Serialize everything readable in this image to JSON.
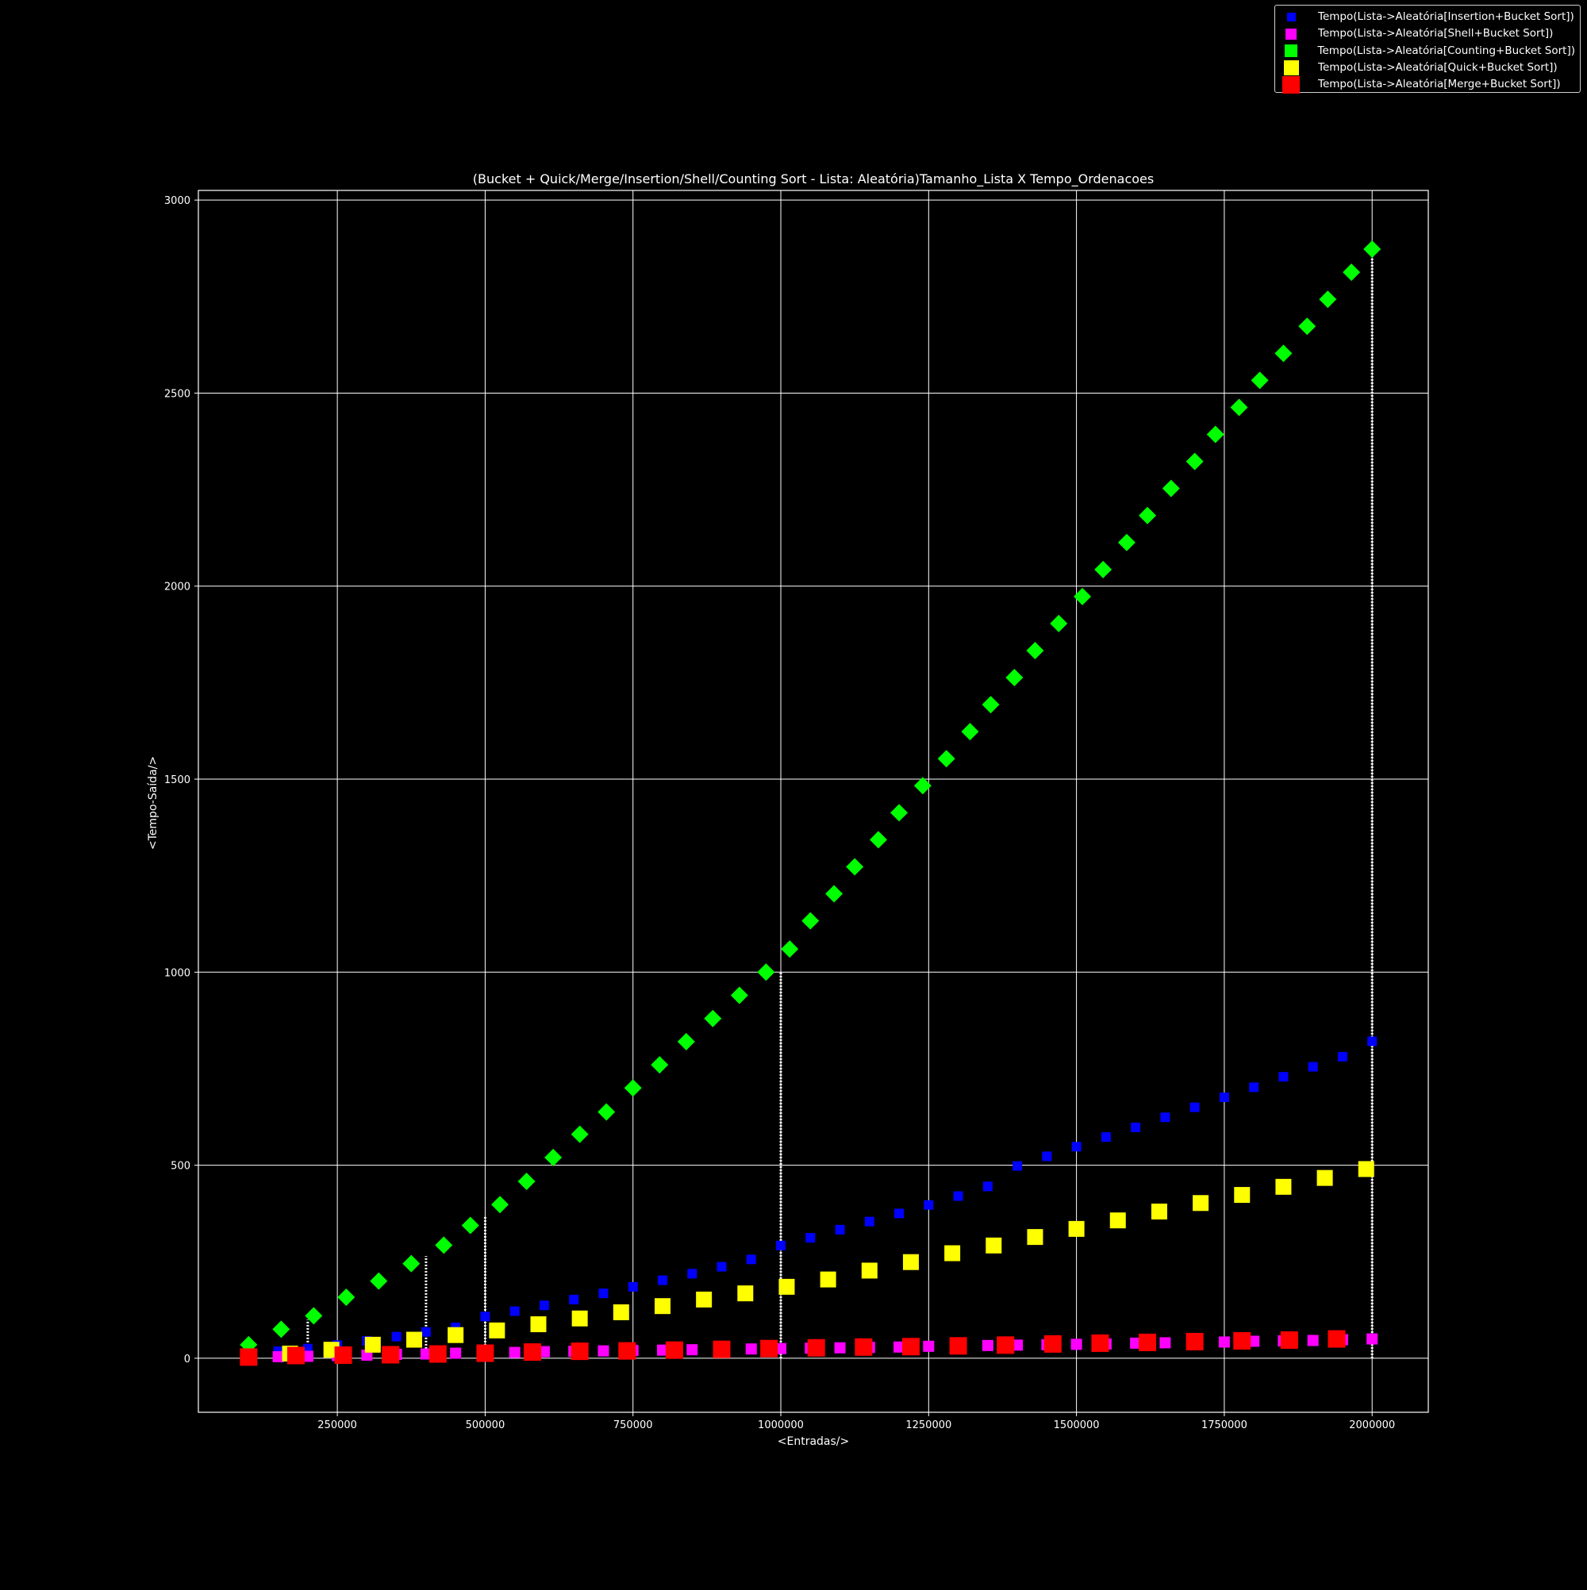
{
  "chart_data": {
    "type": "scatter",
    "title": "(Bucket + Quick/Merge/Insertion/Shell/Counting Sort - Lista: Aleatória)Tamanho_Lista X Tempo_Ordenacoes",
    "xlabel": "<Entradas/>",
    "ylabel": "<Tempo-Saída/>",
    "xlim": [
      15000,
      2095000
    ],
    "ylim": [
      -140,
      3025
    ],
    "xticks": [
      250000,
      500000,
      750000,
      1000000,
      1250000,
      1500000,
      1750000,
      2000000
    ],
    "yticks": [
      0,
      500,
      1000,
      1500,
      2000,
      2500,
      3000
    ],
    "xtick_labels": [
      "250000",
      "500000",
      "750000",
      "1000000",
      "1250000",
      "1500000",
      "1750000",
      "2000000"
    ],
    "ytick_labels": [
      "0",
      "500",
      "1000",
      "1500",
      "2000",
      "2500",
      "3000"
    ],
    "grid": true,
    "legend_position": "top-right",
    "background": "#000000",
    "series": [
      {
        "name": "Tempo(Lista->Aleatória[Insertion+Bucket Sort])",
        "color": "#0000ff",
        "marker": "square",
        "x": [
          100000,
          150000,
          200000,
          250000,
          300000,
          350000,
          400000,
          450000,
          500000,
          550000,
          600000,
          650000,
          700000,
          750000,
          800000,
          850000,
          900000,
          950000,
          1000000,
          1050000,
          1100000,
          1150000,
          1200000,
          1250000,
          1300000,
          1350000,
          1400000,
          1450000,
          1500000,
          1550000,
          1600000,
          1650000,
          1700000,
          1750000,
          1800000,
          1850000,
          1900000,
          1950000,
          2000000
        ],
        "y": [
          12,
          18,
          25,
          34,
          45,
          56,
          68,
          80,
          108,
          122,
          137,
          152,
          168,
          185,
          202,
          219,
          237,
          256,
          292,
          312,
          333,
          354,
          375,
          397,
          420,
          445,
          498,
          523,
          548,
          573,
          598,
          624,
          650,
          676,
          702,
          729,
          755,
          781,
          821
        ]
      },
      {
        "name": "Tempo(Lista->Aleatória[Shell+Bucket Sort])",
        "color": "#ff00ff",
        "marker": "square",
        "x": [
          100000,
          150000,
          200000,
          250000,
          300000,
          350000,
          400000,
          450000,
          500000,
          550000,
          600000,
          650000,
          700000,
          750000,
          800000,
          850000,
          900000,
          950000,
          1000000,
          1050000,
          1100000,
          1150000,
          1200000,
          1250000,
          1300000,
          1350000,
          1400000,
          1450000,
          1500000,
          1550000,
          1600000,
          1650000,
          1700000,
          1750000,
          1800000,
          1850000,
          1900000,
          1950000,
          2000000
        ],
        "y": [
          2,
          4,
          5,
          7,
          8,
          10,
          11,
          13,
          14,
          15,
          17,
          18,
          19,
          20,
          21,
          22,
          23,
          24,
          25,
          26,
          27,
          28,
          29,
          31,
          32,
          33,
          34,
          35,
          36,
          37,
          39,
          40,
          41,
          42,
          44,
          45,
          46,
          48,
          50
        ]
      },
      {
        "name": "Tempo(Lista->Aleatória[Counting+Bucket Sort])",
        "color": "#00ff00",
        "marker": "diamond",
        "x": [
          100000,
          155000,
          210000,
          265000,
          320000,
          375000,
          430000,
          475000,
          525000,
          570000,
          615000,
          660000,
          705000,
          750000,
          795000,
          840000,
          885000,
          930000,
          975000,
          1015000,
          1050000,
          1090000,
          1125000,
          1165000,
          1200000,
          1240000,
          1280000,
          1320000,
          1355000,
          1395000,
          1430000,
          1470000,
          1510000,
          1545000,
          1585000,
          1620000,
          1660000,
          1700000,
          1735000,
          1775000,
          1810000,
          1850000,
          1890000,
          1925000,
          1965000,
          2000000
        ],
        "y": [
          35,
          75,
          110,
          158,
          200,
          245,
          293,
          344,
          398,
          458,
          520,
          580,
          638,
          700,
          760,
          820,
          880,
          940,
          1000,
          1060,
          1133,
          1203,
          1273,
          1343,
          1413,
          1483,
          1553,
          1623,
          1693,
          1763,
          1833,
          1903,
          1973,
          2043,
          2113,
          2183,
          2253,
          2323,
          2393,
          2463,
          2533,
          2603,
          2673,
          2743,
          2813,
          2873
        ]
      },
      {
        "name": "Tempo(Lista->Aleatória[Quick+Bucket Sort])",
        "color": "#ffff00",
        "marker": "square",
        "x": [
          100000,
          170000,
          240000,
          310000,
          380000,
          450000,
          520000,
          590000,
          660000,
          730000,
          800000,
          870000,
          940000,
          1010000,
          1080000,
          1150000,
          1220000,
          1290000,
          1360000,
          1430000,
          1500000,
          1570000,
          1640000,
          1710000,
          1780000,
          1850000,
          1920000,
          1990000
        ],
        "y": [
          5,
          12,
          22,
          35,
          48,
          60,
          72,
          88,
          103,
          119,
          135,
          152,
          168,
          185,
          204,
          227,
          249,
          272,
          292,
          314,
          335,
          357,
          380,
          402,
          423,
          444,
          467,
          490
        ]
      },
      {
        "name": "Tempo(Lista->Aleatória[Merge+Bucket Sort])",
        "color": "#ff0000",
        "marker": "square",
        "x": [
          100000,
          180000,
          260000,
          340000,
          420000,
          500000,
          580000,
          660000,
          740000,
          820000,
          900000,
          980000,
          1060000,
          1140000,
          1220000,
          1300000,
          1380000,
          1460000,
          1540000,
          1620000,
          1700000,
          1780000,
          1860000,
          1940000
        ],
        "y": [
          3,
          7,
          8,
          9,
          11,
          13,
          16,
          18,
          19,
          21,
          23,
          25,
          27,
          29,
          30,
          32,
          34,
          37,
          39,
          41,
          43,
          45,
          47,
          50
        ]
      }
    ],
    "vertical_dotted_lines": [
      {
        "x": 200000,
        "y_top": 100
      },
      {
        "x": 400000,
        "y_top": 265
      },
      {
        "x": 500000,
        "y_top": 370
      },
      {
        "x": 1000000,
        "y_top": 1000
      },
      {
        "x": 2000000,
        "y_top": 2873
      }
    ]
  }
}
